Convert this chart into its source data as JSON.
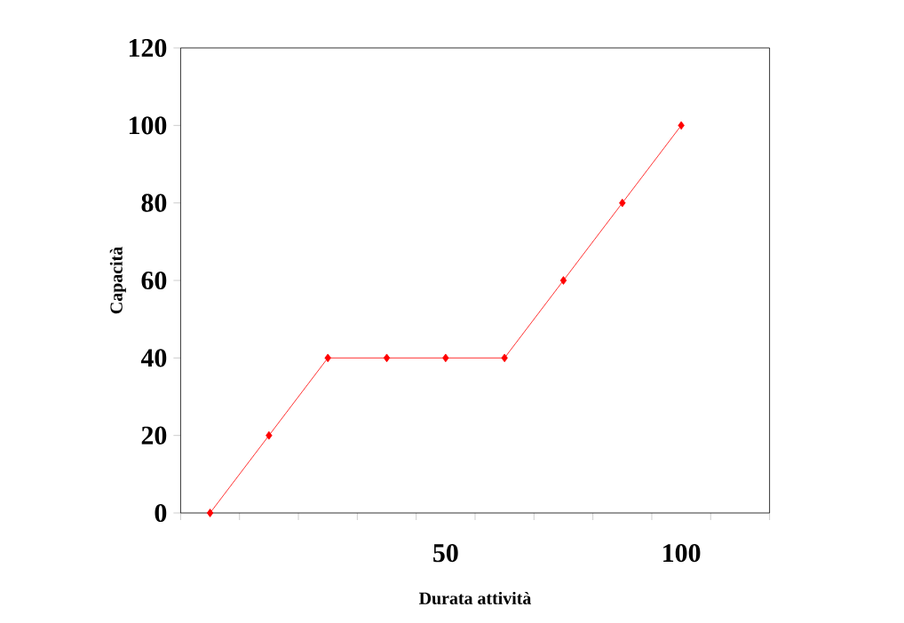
{
  "chart_data": {
    "type": "line",
    "xlabel": "Durata attività",
    "ylabel": "Capacità",
    "x": [
      0,
      12.5,
      25,
      37.5,
      50,
      62.5,
      75,
      87.5,
      100
    ],
    "values": [
      0,
      20,
      40,
      40,
      40,
      40,
      60,
      80,
      100
    ],
    "color": "#ff0000",
    "marker": "diamond",
    "line_style": "solid",
    "grid": false,
    "xlim": [
      -6.25,
      118.75
    ],
    "xticks": [
      {
        "value": -6.25,
        "label": null
      },
      {
        "value": 6.25,
        "label": null
      },
      {
        "value": 18.75,
        "label": null
      },
      {
        "value": 31.25,
        "label": null
      },
      {
        "value": 43.75,
        "label": null
      },
      {
        "value": 50,
        "label": "50"
      },
      {
        "value": 56.25,
        "label": null
      },
      {
        "value": 68.75,
        "label": null
      },
      {
        "value": 81.25,
        "label": null
      },
      {
        "value": 93.75,
        "label": null
      },
      {
        "value": 100,
        "label": "100"
      },
      {
        "value": 106.25,
        "label": null
      },
      {
        "value": 118.75,
        "label": null
      }
    ],
    "ylim": [
      0,
      120
    ],
    "yticks": [
      0,
      20,
      40,
      60,
      80,
      100,
      120
    ]
  }
}
